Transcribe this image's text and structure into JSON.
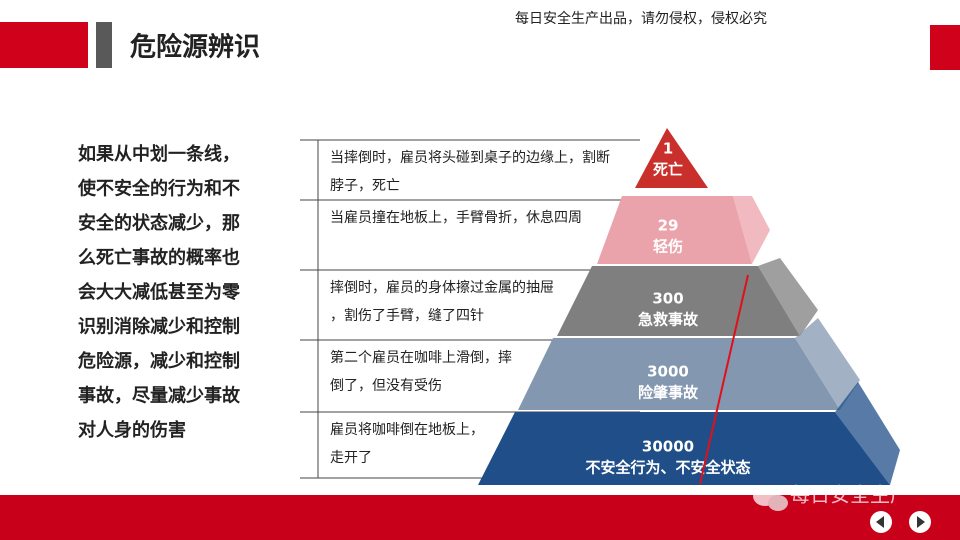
{
  "header": {
    "title": "危险源辨识",
    "notice": "每日安全生产出品，请勿侵权，侵权必究"
  },
  "body": {
    "lines": [
      "如果从中划一条线，",
      "使不安全的行为和不",
      "安全的状态减少，那",
      "么死亡事故的概率也",
      "会大大减低甚至为零",
      "识别消除减少和控制",
      "危险源，减少和控制",
      "事故，尽量减少事故",
      "对人身的伤害"
    ]
  },
  "pyramid": {
    "levels": [
      {
        "number": "1",
        "label": "死亡",
        "description": [
          "当摔倒时，雇员将头碰到桌子的边缘上，割断",
          "脖子，死亡"
        ]
      },
      {
        "number": "29",
        "label": "轻伤",
        "description": [
          "当雇员撞在地板上，手臂骨折，休息四周"
        ]
      },
      {
        "number": "300",
        "label": "急救事故",
        "description": [
          "摔倒时，雇员的身体擦过金属的抽屉",
          "，割伤了手臂，缝了四针"
        ]
      },
      {
        "number": "3000",
        "label": "险肇事故",
        "description": [
          "第二个雇员在咖啡上滑倒，摔",
          "倒了，但没有受伤"
        ]
      },
      {
        "number": "30000",
        "label": "不安全行为、不安全状态",
        "description": [
          "雇员将咖啡倒在地板上，",
          "走开了"
        ]
      }
    ]
  },
  "footer": {
    "watermark": "每日安全生产"
  }
}
